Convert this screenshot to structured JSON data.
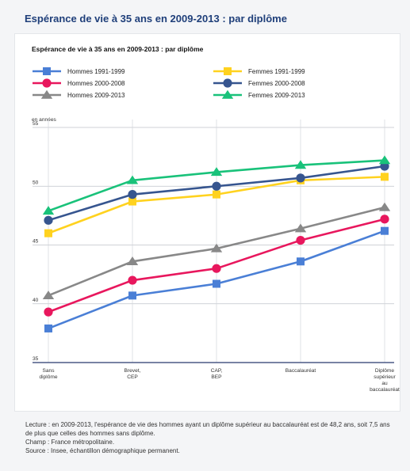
{
  "page": {
    "title": "Espérance de vie à 35 ans en 2009-2013 : par diplôme"
  },
  "footer": {
    "lecture": "Lecture : en 2009-2013, l'espérance de vie des hommes ayant un diplôme supérieur au baccalauréat est de 48,2 ans, soit 7,5 ans de plus que celles des hommes sans diplôme.",
    "champ": "Champ : France métropolitaine.",
    "source": "Source : Insee, échantillon démographique permanent."
  },
  "chart_data": {
    "type": "line",
    "title": "Espérance de vie à 35 ans en 2009-2013 : par diplôme",
    "ylabel": "en années",
    "xlabel": "",
    "ylim": [
      35,
      55
    ],
    "yticks": [
      35,
      40,
      45,
      50,
      55
    ],
    "grid": true,
    "legend_position": "top",
    "categories": [
      [
        "Sans",
        "diplôme"
      ],
      [
        "Brevet,",
        "CEP"
      ],
      [
        "CAP,",
        "BEP"
      ],
      [
        "Baccalauréat"
      ],
      [
        "Diplôme",
        "supérieur",
        "au",
        "baccalauréat"
      ]
    ],
    "series": [
      {
        "name": "Hommes 1991-1999",
        "marker": "square",
        "color": "#4a7fd6",
        "values": [
          37.9,
          40.7,
          41.7,
          43.6,
          46.2
        ]
      },
      {
        "name": "Femmes 1991-1999",
        "marker": "square",
        "color": "#ffd21f",
        "values": [
          46.0,
          48.7,
          49.3,
          50.5,
          50.8
        ]
      },
      {
        "name": "Hommes 2000-2008",
        "marker": "circle",
        "color": "#e8175d",
        "values": [
          39.3,
          42.0,
          43.0,
          45.4,
          47.2
        ]
      },
      {
        "name": "Femmes 2000-2008",
        "marker": "circle",
        "color": "#36558f",
        "values": [
          47.1,
          49.3,
          50.0,
          50.7,
          51.7
        ]
      },
      {
        "name": "Hommes 2009-2013",
        "marker": "triangle",
        "color": "#888888",
        "values": [
          40.7,
          43.6,
          44.7,
          46.4,
          48.2
        ]
      },
      {
        "name": "Femmes 2009-2013",
        "marker": "triangle",
        "color": "#19c27a",
        "values": [
          47.9,
          50.5,
          51.2,
          51.8,
          52.2
        ]
      }
    ]
  }
}
